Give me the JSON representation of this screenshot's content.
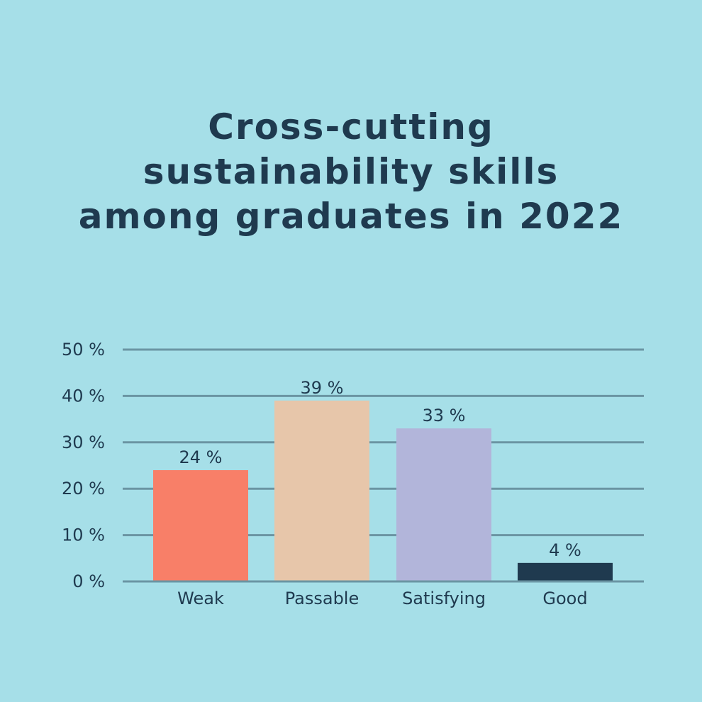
{
  "chart_data": {
    "type": "bar",
    "title_lines": [
      "Cross-cutting",
      "sustainability skills",
      "among graduates in 2022"
    ],
    "categories": [
      "Weak",
      "Passable",
      "Satisfying",
      "Good"
    ],
    "values": [
      24,
      39,
      33,
      4
    ],
    "value_labels": [
      "24 %",
      "39 %",
      "33 %",
      "4 %"
    ],
    "yticks": [
      "0 %",
      "10 %",
      "20 %",
      "30 %",
      "40 %",
      "50 %"
    ],
    "ylim": [
      0,
      50
    ],
    "grid": true,
    "xlabel": "",
    "ylabel": "",
    "colors": [
      "#f87f68",
      "#e7c6aa",
      "#b2b5da",
      "#1f3a4f"
    ],
    "grid_color": "#6b95a3",
    "text_color": "#1f3a4f"
  }
}
